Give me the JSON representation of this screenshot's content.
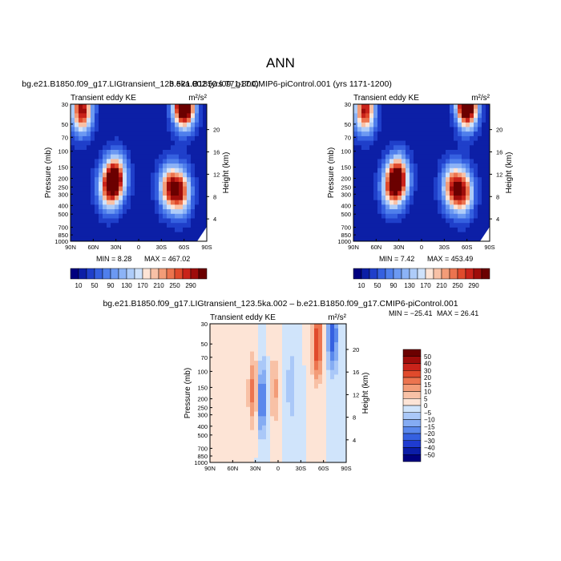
{
  "figure": {
    "title": "ANN"
  },
  "chart_data": [
    {
      "type": "heatmap",
      "title": "bg.e21.B1850.f09_g17.LIGtransient_123.5ka.002 (yrs 771-800)",
      "subtitle_left": "Transient eddy KE",
      "units": "m²/s²",
      "xlabel": "",
      "ylabel": "Pressure (mb)",
      "y2label": "Height (km)",
      "x_ticks": [
        "90N",
        "60N",
        "30N",
        "0",
        "30S",
        "60S",
        "90S"
      ],
      "y_ticks": [
        "30",
        "50",
        "70",
        "100",
        "150",
        "200",
        "250",
        "300",
        "400",
        "500",
        "700",
        "850",
        "1000"
      ],
      "y2_ticks": [
        "20",
        "16",
        "12",
        "8",
        "4"
      ],
      "min_label": "MIN =   8.28",
      "max_label": "MAX = 467.02",
      "min": 8.28,
      "max": 467.02,
      "colorbar_levels": [
        "10",
        "50",
        "90",
        "130",
        "170",
        "210",
        "250",
        "290"
      ],
      "features": [
        {
          "lat": 30,
          "p": 200,
          "value": 300
        },
        {
          "lat": 40,
          "p": 250,
          "value": 220
        },
        {
          "lat": -40,
          "p": 250,
          "value": 230
        },
        {
          "lat": -55,
          "p": 280,
          "value": 260
        },
        {
          "lat": -60,
          "p": 30,
          "value": 470
        },
        {
          "lat": 75,
          "p": 35,
          "value": 300
        }
      ]
    },
    {
      "type": "heatmap",
      "title": "b.e21.B1850.f09_g17.CMIP6-piControl.001 (yrs 1171-1200)",
      "subtitle_left": "Transient eddy KE",
      "units": "m²/s²",
      "xlabel": "",
      "ylabel": "Pressure (mb)",
      "y2label": "Height (km)",
      "x_ticks": [
        "90N",
        "60N",
        "30N",
        "0",
        "30S",
        "60S",
        "90S"
      ],
      "y_ticks": [
        "30",
        "50",
        "70",
        "100",
        "150",
        "200",
        "250",
        "300",
        "400",
        "500",
        "700",
        "850",
        "1000"
      ],
      "y2_ticks": [
        "20",
        "16",
        "12",
        "8",
        "4"
      ],
      "min_label": "MIN =   7.42",
      "max_label": "MAX = 453.49",
      "min": 7.42,
      "max": 453.49,
      "colorbar_levels": [
        "10",
        "50",
        "90",
        "130",
        "170",
        "210",
        "250",
        "290"
      ],
      "features": [
        {
          "lat": 30,
          "p": 200,
          "value": 290
        },
        {
          "lat": 40,
          "p": 250,
          "value": 210
        },
        {
          "lat": -40,
          "p": 250,
          "value": 225
        },
        {
          "lat": -55,
          "p": 280,
          "value": 255
        },
        {
          "lat": -60,
          "p": 30,
          "value": 455
        },
        {
          "lat": 75,
          "p": 35,
          "value": 290
        }
      ]
    },
    {
      "type": "heatmap",
      "title": "bg.e21.B1850.f09_g17.LIGtransient_123.5ka.002 – b.e21.B1850.f09_g17.CMIP6-piControl.001",
      "subtitle_left": "Transient eddy KE",
      "units": "m²/s²",
      "xlabel": "",
      "ylabel": "Pressure (mb)",
      "y2label": "Height (km)",
      "x_ticks": [
        "90N",
        "60N",
        "30N",
        "0",
        "30S",
        "60S",
        "90S"
      ],
      "y_ticks": [
        "30",
        "50",
        "70",
        "100",
        "150",
        "200",
        "250",
        "300",
        "400",
        "500",
        "700",
        "850",
        "1000"
      ],
      "y2_ticks": [
        "20",
        "16",
        "12",
        "8",
        "4"
      ],
      "min_label": "MIN = −25.41",
      "max_label": "MAX =  26.41",
      "min": -25.41,
      "max": 26.41,
      "colorbar_levels": [
        "50",
        "40",
        "30",
        "20",
        "15",
        "10",
        "5",
        "0",
        "−5",
        "−10",
        "−15",
        "−20",
        "−30",
        "−40",
        "−50"
      ],
      "features": [
        {
          "lat": 32,
          "p": 170,
          "value": 20
        },
        {
          "lat": 22,
          "p": 200,
          "value": -25
        },
        {
          "lat": 5,
          "p": 160,
          "value": 12
        },
        {
          "lat": -18,
          "p": 140,
          "value": -10
        },
        {
          "lat": -52,
          "p": 50,
          "value": 26
        },
        {
          "lat": -72,
          "p": 40,
          "value": -25
        }
      ]
    }
  ],
  "colors": {
    "abs_palette": [
      "#00007f",
      "#0c1fa6",
      "#1f3fca",
      "#3560e0",
      "#4f7fec",
      "#6c99f2",
      "#8cb3f6",
      "#aeccf9",
      "#cfe2fb",
      "#fde4d6",
      "#f8c1a6",
      "#f39c78",
      "#ec744f",
      "#e04a2c",
      "#c9231a",
      "#9e0c0a",
      "#6b0000"
    ],
    "diff_palette": [
      "#00007f",
      "#0b1da8",
      "#1f3bd0",
      "#3560e0",
      "#5a88ec",
      "#85acf3",
      "#aac8f8",
      "#d0e4fb",
      "#fde4d6",
      "#f8c1a6",
      "#f39c78",
      "#ec744f",
      "#e04a2c",
      "#c9231a",
      "#9e0c0a",
      "#6b0000"
    ]
  }
}
